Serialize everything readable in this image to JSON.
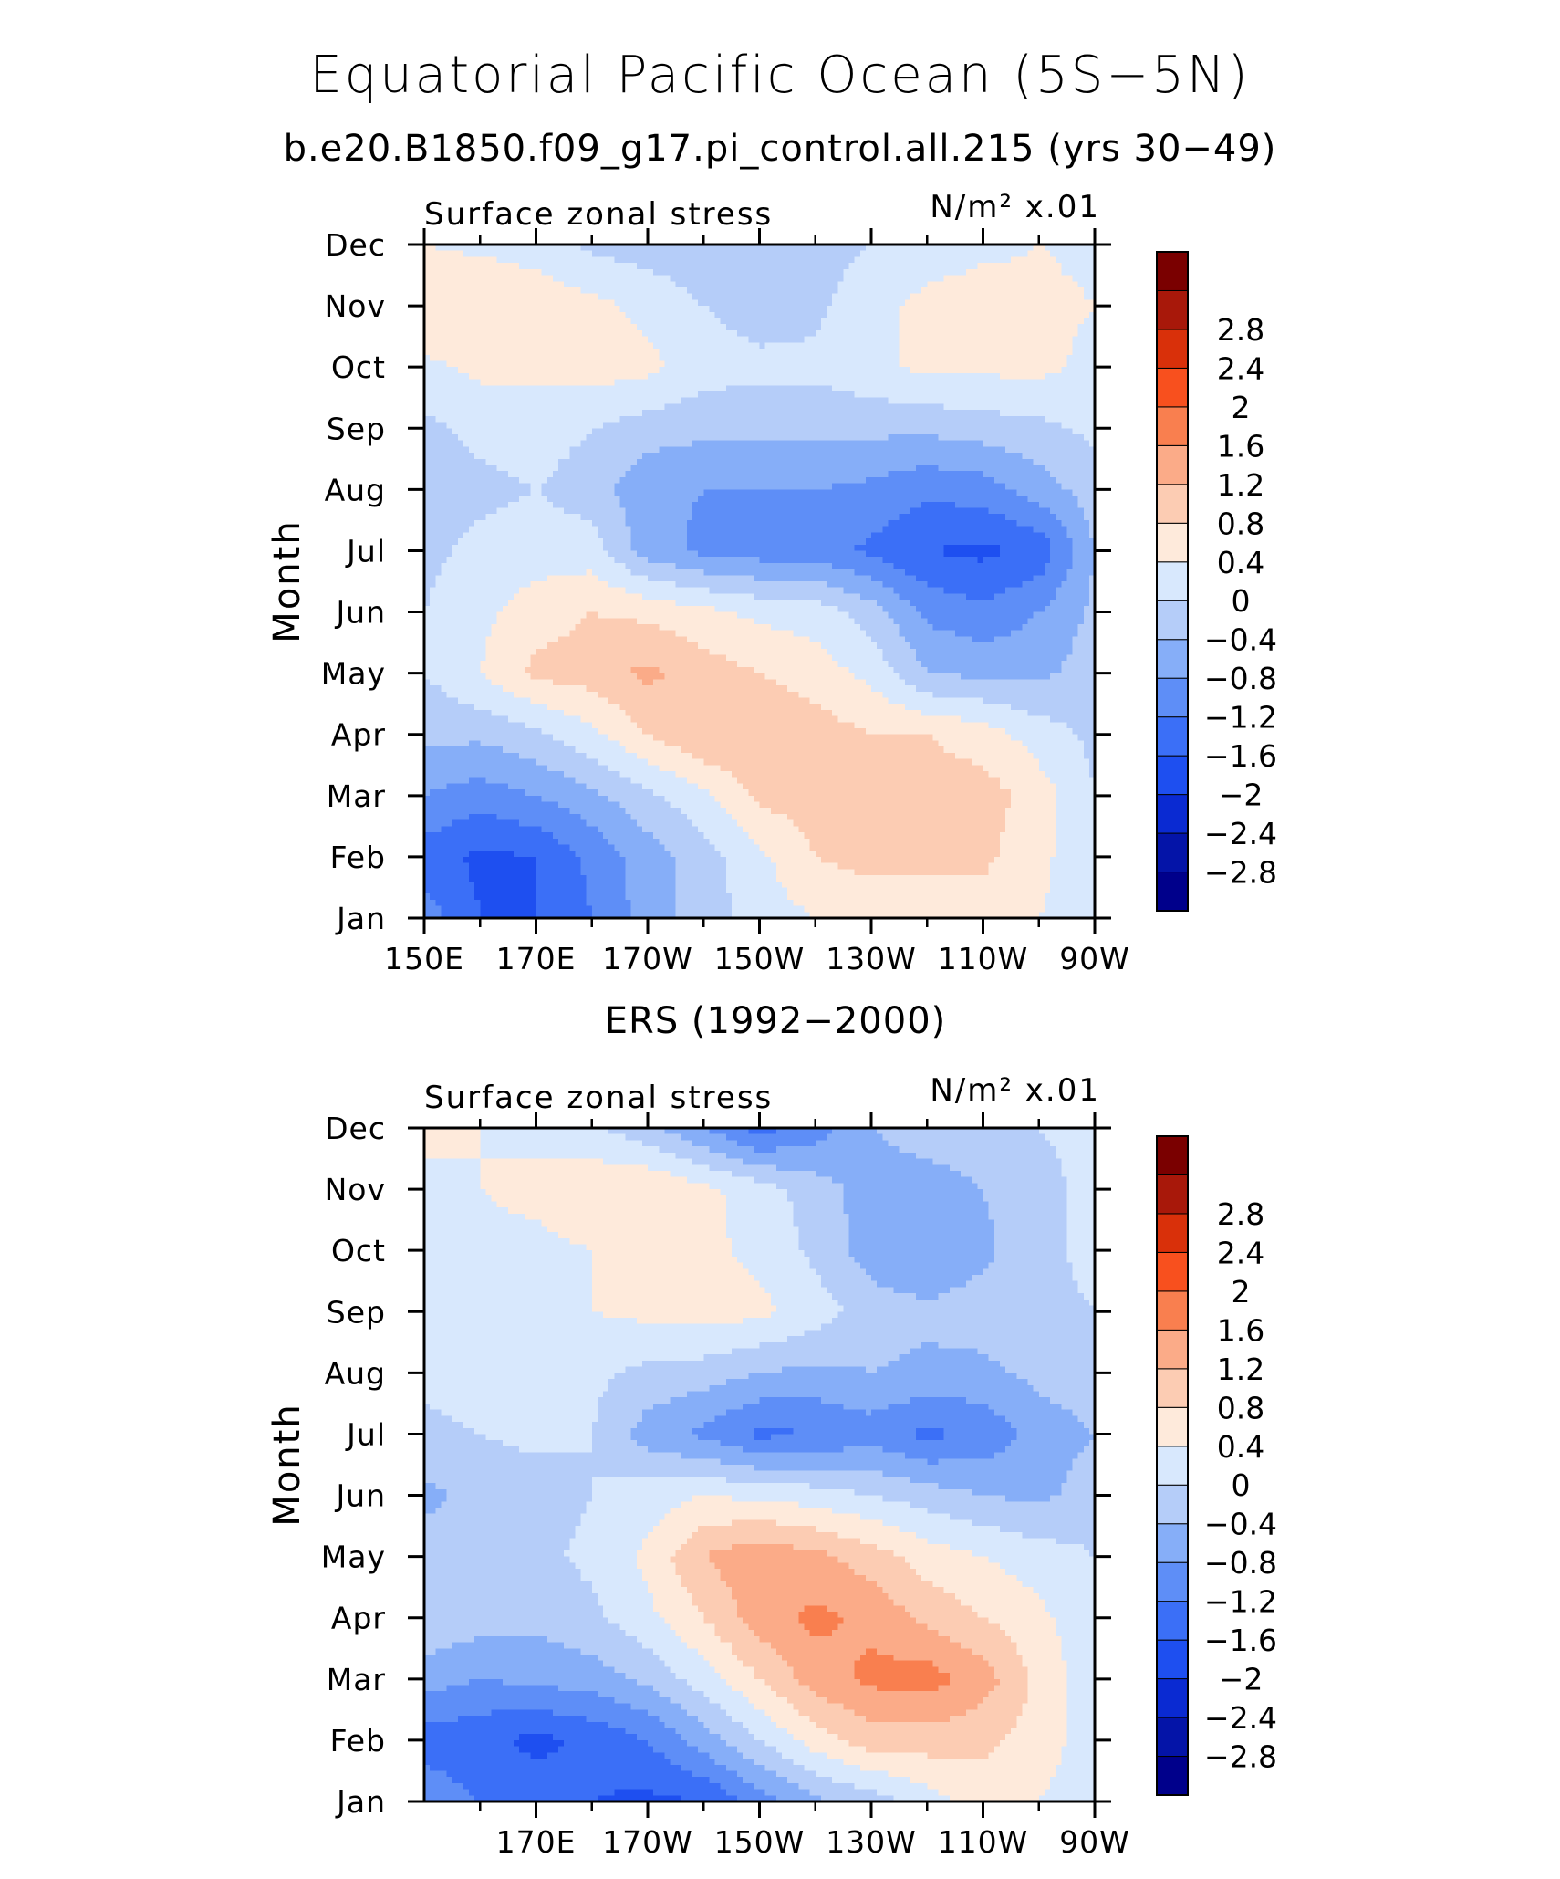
{
  "figure": {
    "title": "Equatorial Pacific Ocean (5S−5N)",
    "subtitle": "b.e20.B1850.f09_g17.pi_control.all.215 (yrs 30−49)"
  },
  "palette": {
    "levels": [
      -2.8,
      -2.4,
      -2,
      -1.6,
      -1.2,
      -0.8,
      -0.4,
      0,
      0.4,
      0.8,
      1.2,
      1.6,
      2,
      2.4,
      2.8
    ],
    "colors": [
      "#00008b",
      "#0414a8",
      "#0a2ad2",
      "#1e4ff0",
      "#3b6ff7",
      "#5e8ef7",
      "#86aef8",
      "#b5cdf9",
      "#d8e8fd",
      "#feeadb",
      "#fcccb3",
      "#fbab88",
      "#f97f4f",
      "#f8501e",
      "#d9300a",
      "#a8180a",
      "#7a0000"
    ],
    "label_strings": [
      "−2.8",
      "−2.4",
      "−2",
      "−1.6",
      "−1.2",
      "−0.8",
      "−0.4",
      "0",
      "0.4",
      "0.8",
      "1.2",
      "1.6",
      "2",
      "2.4",
      "2.8"
    ]
  },
  "chart_data": [
    {
      "type": "heatmap",
      "panel_title": "",
      "left_label": "Surface zonal stress",
      "right_label": "N/m² x.01",
      "ylabel": "Month",
      "y_tick_labels": [
        "Jan",
        "Feb",
        "Mar",
        "Apr",
        "May",
        "Jun",
        "Jul",
        "Aug",
        "Sep",
        "Oct",
        "Nov",
        "Dec"
      ],
      "x_tick_labels": [
        "150E",
        "170E",
        "170W",
        "150W",
        "130W",
        "110W",
        "90W"
      ],
      "x_tick_values": [
        150,
        170,
        190,
        210,
        230,
        250,
        270
      ],
      "xlim": [
        150,
        270
      ],
      "ylim": [
        1,
        12
      ],
      "x": [
        150,
        160,
        170,
        180,
        190,
        200,
        210,
        220,
        230,
        240,
        250,
        260,
        270
      ],
      "y": [
        1,
        2,
        3,
        4,
        5,
        6,
        7,
        8,
        9,
        10,
        11,
        12
      ],
      "z": [
        [
          -1.0,
          -1.6,
          -1.6,
          -1.2,
          -0.6,
          -0.2,
          0.2,
          0.4,
          0.4,
          0.6,
          0.6,
          0.4,
          0.2
        ],
        [
          -1.4,
          -1.7,
          -1.6,
          -1.1,
          -0.6,
          -0.2,
          0.3,
          0.8,
          1.0,
          0.9,
          0.9,
          0.5,
          0.1
        ],
        [
          -0.8,
          -1.0,
          -0.8,
          -0.5,
          -0.1,
          0.3,
          0.9,
          1.0,
          1.0,
          1.0,
          1.0,
          0.6,
          0.0
        ],
        [
          -0.3,
          -0.3,
          -0.1,
          0.3,
          0.8,
          1.2,
          1.2,
          1.0,
          0.8,
          0.8,
          0.6,
          0.2,
          -0.1
        ],
        [
          0.0,
          0.4,
          0.9,
          1.0,
          1.3,
          1.0,
          0.8,
          0.6,
          0.3,
          -0.4,
          -0.5,
          -0.5,
          -0.2
        ],
        [
          0.0,
          0.3,
          0.6,
          0.8,
          0.7,
          0.5,
          0.3,
          0.2,
          -0.2,
          -0.9,
          -1.1,
          -0.8,
          -0.3
        ],
        [
          -0.1,
          0.1,
          0.2,
          0.2,
          -0.6,
          -0.9,
          -1.0,
          -1.0,
          -1.3,
          -1.6,
          -1.7,
          -1.5,
          -0.4
        ],
        [
          -0.2,
          -0.1,
          0.0,
          -0.2,
          -0.7,
          -0.8,
          -0.8,
          -0.8,
          -0.9,
          -1.1,
          -1.0,
          -0.6,
          -0.2
        ],
        [
          -0.1,
          0.1,
          0.2,
          0.0,
          -0.2,
          -0.3,
          -0.3,
          -0.3,
          -0.3,
          -0.3,
          -0.2,
          -0.1,
          0.1
        ],
        [
          0.3,
          0.5,
          0.5,
          0.6,
          0.5,
          0.2,
          0.1,
          0.1,
          0.3,
          0.5,
          0.5,
          0.5,
          0.3
        ],
        [
          0.8,
          0.8,
          0.7,
          0.5,
          0.3,
          0.0,
          -0.2,
          -0.1,
          0.3,
          0.5,
          0.6,
          0.5,
          0.4
        ],
        [
          0.4,
          0.3,
          0.2,
          -0.1,
          -0.2,
          -0.3,
          -0.3,
          -0.2,
          0.0,
          0.2,
          0.3,
          0.4,
          0.3
        ]
      ]
    },
    {
      "type": "heatmap",
      "panel_title": "ERS (1992−2000)",
      "left_label": "Surface zonal stress",
      "right_label": "N/m² x.01",
      "ylabel": "Month",
      "y_tick_labels": [
        "Jan",
        "Feb",
        "Mar",
        "Apr",
        "May",
        "Jun",
        "Jul",
        "Aug",
        "Sep",
        "Oct",
        "Nov",
        "Dec"
      ],
      "x_tick_labels": [
        "170E",
        "170W",
        "150W",
        "130W",
        "110W",
        "90W"
      ],
      "x_tick_values": [
        170,
        190,
        210,
        230,
        250,
        270
      ],
      "xlim": [
        150,
        270
      ],
      "ylim": [
        1,
        12
      ],
      "x": [
        150,
        160,
        170,
        180,
        190,
        200,
        210,
        220,
        230,
        240,
        250,
        260,
        270
      ],
      "y": [
        1,
        2,
        3,
        4,
        5,
        6,
        7,
        8,
        9,
        10,
        11,
        12
      ],
      "z": [
        [
          -0.9,
          -1.2,
          -1.4,
          -1.6,
          -1.7,
          -1.6,
          -1.0,
          -0.5,
          -0.2,
          0.2,
          0.6,
          0.4,
          0.1
        ],
        [
          -1.4,
          -1.5,
          -1.7,
          -1.5,
          -1.2,
          -0.6,
          0.0,
          0.6,
          1.0,
          1.0,
          0.9,
          0.6,
          0.2
        ],
        [
          -0.6,
          -0.8,
          -0.7,
          -0.6,
          -0.3,
          0.2,
          0.8,
          1.4,
          1.7,
          1.8,
          1.4,
          0.7,
          0.1
        ],
        [
          -0.1,
          -0.2,
          -0.3,
          -0.1,
          0.3,
          0.8,
          1.4,
          1.7,
          1.5,
          1.1,
          0.8,
          0.5,
          0.1
        ],
        [
          -0.2,
          -0.2,
          -0.1,
          0.1,
          0.5,
          1.2,
          1.5,
          1.3,
          1.0,
          0.6,
          0.4,
          0.2,
          0.0
        ],
        [
          -0.5,
          -0.3,
          -0.2,
          0.0,
          0.2,
          0.4,
          0.3,
          0.2,
          0.0,
          -0.2,
          -0.4,
          -0.5,
          -0.2
        ],
        [
          -0.1,
          0.0,
          0.1,
          0.0,
          -0.6,
          -0.9,
          -1.3,
          -1.2,
          -1.0,
          -1.3,
          -1.1,
          -0.6,
          -0.4
        ],
        [
          0.1,
          0.2,
          0.2,
          0.1,
          -0.1,
          -0.2,
          -0.4,
          -0.5,
          -0.4,
          -0.5,
          -0.5,
          -0.3,
          -0.2
        ],
        [
          0.2,
          0.3,
          0.3,
          0.4,
          0.5,
          0.6,
          0.5,
          0.2,
          -0.2,
          -0.3,
          -0.2,
          -0.1,
          0.0
        ],
        [
          0.3,
          0.3,
          0.3,
          0.4,
          0.6,
          0.5,
          0.3,
          -0.1,
          -0.6,
          -0.8,
          -0.5,
          -0.1,
          0.1
        ],
        [
          0.3,
          0.4,
          0.5,
          0.7,
          0.8,
          0.5,
          0.2,
          -0.2,
          -0.6,
          -0.6,
          -0.4,
          -0.1,
          0.1
        ],
        [
          0.5,
          0.4,
          0.3,
          0.1,
          -0.3,
          -0.8,
          -1.4,
          -1.0,
          -0.4,
          -0.2,
          -0.1,
          0.0,
          0.1
        ]
      ]
    }
  ]
}
